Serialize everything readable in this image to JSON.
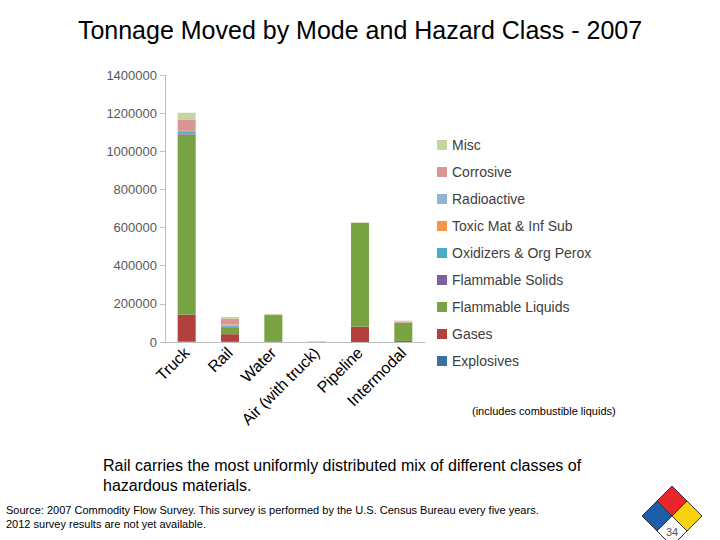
{
  "chart_data": {
    "type": "bar",
    "title": "Tonnage Moved by Mode and Hazard Class - 2007",
    "categories": [
      "Truck",
      "Rail",
      "Water",
      "Air (with truck)",
      "Pipeline",
      "Intermodal"
    ],
    "series": [
      {
        "name": "Explosives",
        "color": "#3d6fa3",
        "values": [
          3000,
          1000,
          0,
          100,
          0,
          500
        ]
      },
      {
        "name": "Gases",
        "color": "#b3403c",
        "values": [
          140000,
          40000,
          3000,
          300,
          80000,
          5000
        ]
      },
      {
        "name": "Flammable Liquids",
        "color": "#79a342",
        "values": [
          945000,
          35000,
          138000,
          1500,
          545000,
          95000
        ]
      },
      {
        "name": "Flammable Solids",
        "color": "#7b5fa0",
        "values": [
          5000,
          5000,
          500,
          50,
          0,
          500
        ]
      },
      {
        "name": "Oxidizers & Org Perox",
        "color": "#4bacc6",
        "values": [
          8000,
          5000,
          500,
          50,
          0,
          500
        ]
      },
      {
        "name": "Toxic Mat & Inf Sub",
        "color": "#f79646",
        "values": [
          5000,
          5000,
          500,
          50,
          0,
          500
        ]
      },
      {
        "name": "Radioactive",
        "color": "#95b3d7",
        "values": [
          1000,
          500,
          0,
          50,
          0,
          0
        ]
      },
      {
        "name": "Corrosive",
        "color": "#d99694",
        "values": [
          60000,
          30000,
          2000,
          300,
          0,
          5000
        ]
      },
      {
        "name": "Misc",
        "color": "#c3d69b",
        "values": [
          35000,
          10000,
          3000,
          600,
          0,
          5000
        ]
      }
    ],
    "stacked": true,
    "legend": "right",
    "grid": false,
    "ylim": [
      0,
      1400000
    ],
    "yticks": [
      0,
      200000,
      400000,
      600000,
      800000,
      1000000,
      1200000,
      1400000
    ],
    "annotations": {
      "axis_note": "(includes combustible liquids)",
      "caption": "Rail carries the most uniformly distributed mix of different classes of hazardous materials.",
      "source": [
        "Source: 2007 Commodity Flow Survey. This survey is performed by the U.S. Census Bureau every five years.",
        "2012 survey results are not yet available."
      ],
      "page": "34"
    }
  }
}
